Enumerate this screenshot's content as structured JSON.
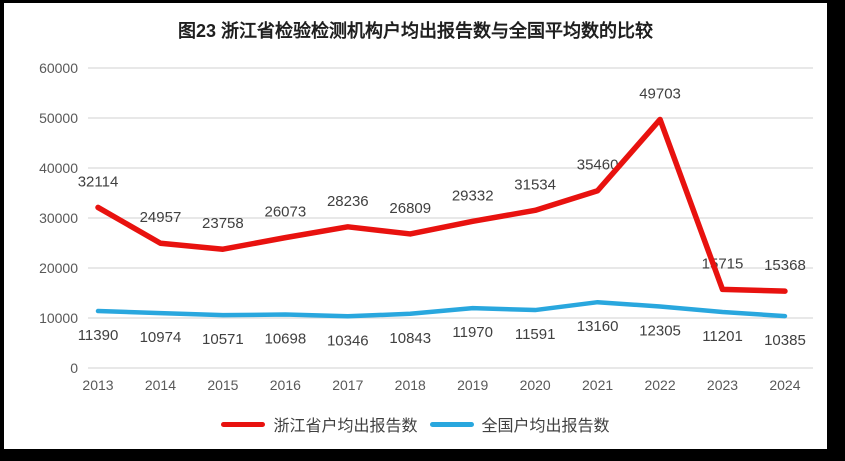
{
  "title": "图23  浙江省检验检测机构户均出报告数与全国平均数的比较",
  "chart_data": {
    "type": "line",
    "x": [
      "2013",
      "2014",
      "2015",
      "2016",
      "2017",
      "2018",
      "2019",
      "2020",
      "2021",
      "2022",
      "2023",
      "2024"
    ],
    "series": [
      {
        "name": "浙江省户均出报告数",
        "color": "#e8120f",
        "label_position": "above",
        "values": [
          32114,
          24957,
          23758,
          26073,
          28236,
          26809,
          29332,
          31534,
          35460,
          49703,
          15715,
          15368
        ]
      },
      {
        "name": "全国户均出报告数",
        "color": "#29a7de",
        "label_position": "below",
        "values": [
          11390,
          10974,
          10571,
          10698,
          10346,
          10843,
          11970,
          11591,
          13160,
          12305,
          11201,
          10385
        ]
      }
    ],
    "ylim": [
      0,
      60000
    ],
    "ytick_step": 10000,
    "yticks": [
      0,
      10000,
      20000,
      30000,
      40000,
      50000,
      60000
    ],
    "grid": "horizontal",
    "grid_color": "#d9d9d9",
    "tick_color": "#595959",
    "data_label_color": "#404040",
    "data_labels": true,
    "legend_position": "bottom",
    "xlabel": "",
    "ylabel": ""
  }
}
